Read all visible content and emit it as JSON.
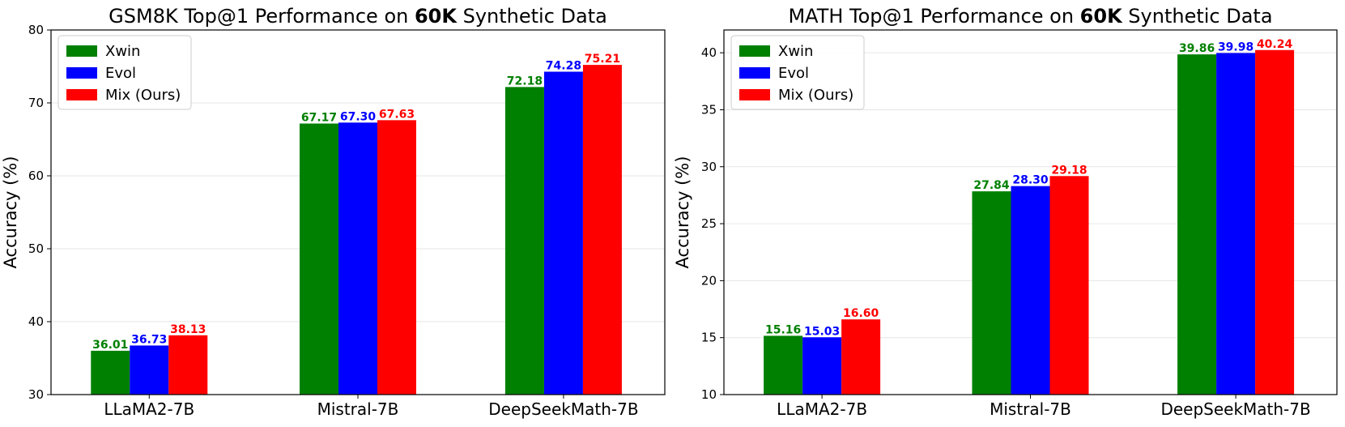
{
  "chart_data": [
    {
      "type": "bar",
      "title_parts": [
        "GSM8K Top@1 Performance on ",
        "60K",
        " Synthetic Data"
      ],
      "title": "GSM8K Top@1 Performance on 60K Synthetic Data",
      "ylabel": "Accuracy (%)",
      "xlabel": "",
      "ylim": [
        30,
        80
      ],
      "yticks": [
        30,
        40,
        50,
        60,
        70,
        80
      ],
      "categories": [
        "LLaMA2-7B",
        "Mistral-7B",
        "DeepSeekMath-7B"
      ],
      "series": [
        {
          "name": "Xwin",
          "color": "#008000",
          "values": [
            36.01,
            67.17,
            72.18
          ],
          "labels": [
            "36.01",
            "67.17",
            "72.18"
          ]
        },
        {
          "name": "Evol",
          "color": "#0000ff",
          "values": [
            36.73,
            67.3,
            74.28
          ],
          "labels": [
            "36.73",
            "67.30",
            "74.28"
          ]
        },
        {
          "name": "Mix (Ours)",
          "color": "#ff0000",
          "values": [
            38.13,
            67.63,
            75.21
          ],
          "labels": [
            "38.13",
            "67.63",
            "75.21"
          ]
        }
      ],
      "grid": "horizontal",
      "legend": "top-left"
    },
    {
      "type": "bar",
      "title_parts": [
        "MATH Top@1 Performance on ",
        "60K",
        " Synthetic Data"
      ],
      "title": "MATH Top@1 Performance on 60K Synthetic Data",
      "ylabel": "Accuracy (%)",
      "xlabel": "",
      "ylim": [
        10,
        42
      ],
      "yticks": [
        10,
        15,
        20,
        25,
        30,
        35,
        40
      ],
      "categories": [
        "LLaMA2-7B",
        "Mistral-7B",
        "DeepSeekMath-7B"
      ],
      "series": [
        {
          "name": "Xwin",
          "color": "#008000",
          "values": [
            15.16,
            27.84,
            39.86
          ],
          "labels": [
            "15.16",
            "27.84",
            "39.86"
          ]
        },
        {
          "name": "Evol",
          "color": "#0000ff",
          "values": [
            15.03,
            28.3,
            39.98
          ],
          "labels": [
            "15.03",
            "28.30",
            "39.98"
          ]
        },
        {
          "name": "Mix (Ours)",
          "color": "#ff0000",
          "values": [
            16.6,
            29.18,
            40.24
          ],
          "labels": [
            "16.60",
            "29.18",
            "40.24"
          ]
        }
      ],
      "grid": "horizontal",
      "legend": "top-left"
    }
  ]
}
